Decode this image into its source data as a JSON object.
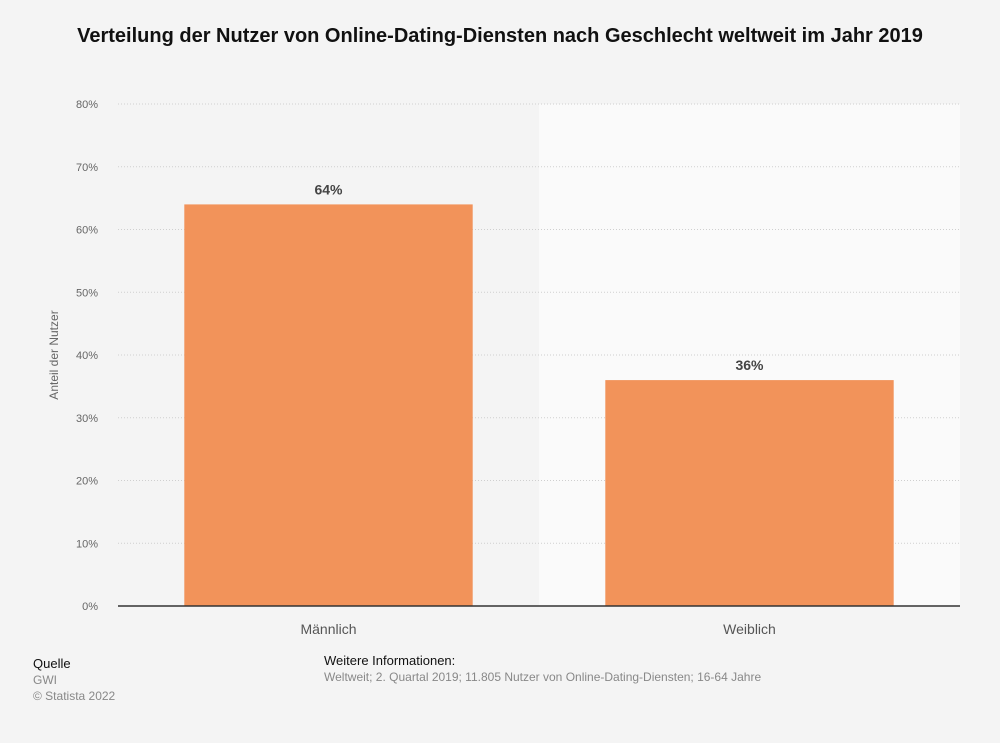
{
  "chart_data": {
    "type": "bar",
    "title": "Verteilung der Nutzer von Online-Dating-Diensten nach Geschlecht weltweit im Jahr 2019",
    "categories": [
      "Männlich",
      "Weiblich"
    ],
    "values": [
      64,
      36
    ],
    "value_labels": [
      "64%",
      "36%"
    ],
    "ylabel": "Anteil der Nutzer",
    "xlabel": "",
    "ylim": [
      0,
      80
    ],
    "yticks": [
      0,
      10,
      20,
      30,
      40,
      50,
      60,
      70,
      80
    ],
    "ytick_labels": [
      "0%",
      "10%",
      "20%",
      "30%",
      "40%",
      "50%",
      "60%",
      "70%",
      "80%"
    ],
    "grid": true,
    "bar_color": "#f2935a"
  },
  "footer": {
    "source_heading": "Quelle",
    "source": "GWI",
    "copyright": "© Statista 2022",
    "info_heading": "Weitere Informationen:",
    "info_text": "Weltweit; 2. Quartal 2019; 11.805 Nutzer von Online-Dating-Diensten; 16-64 Jahre"
  }
}
